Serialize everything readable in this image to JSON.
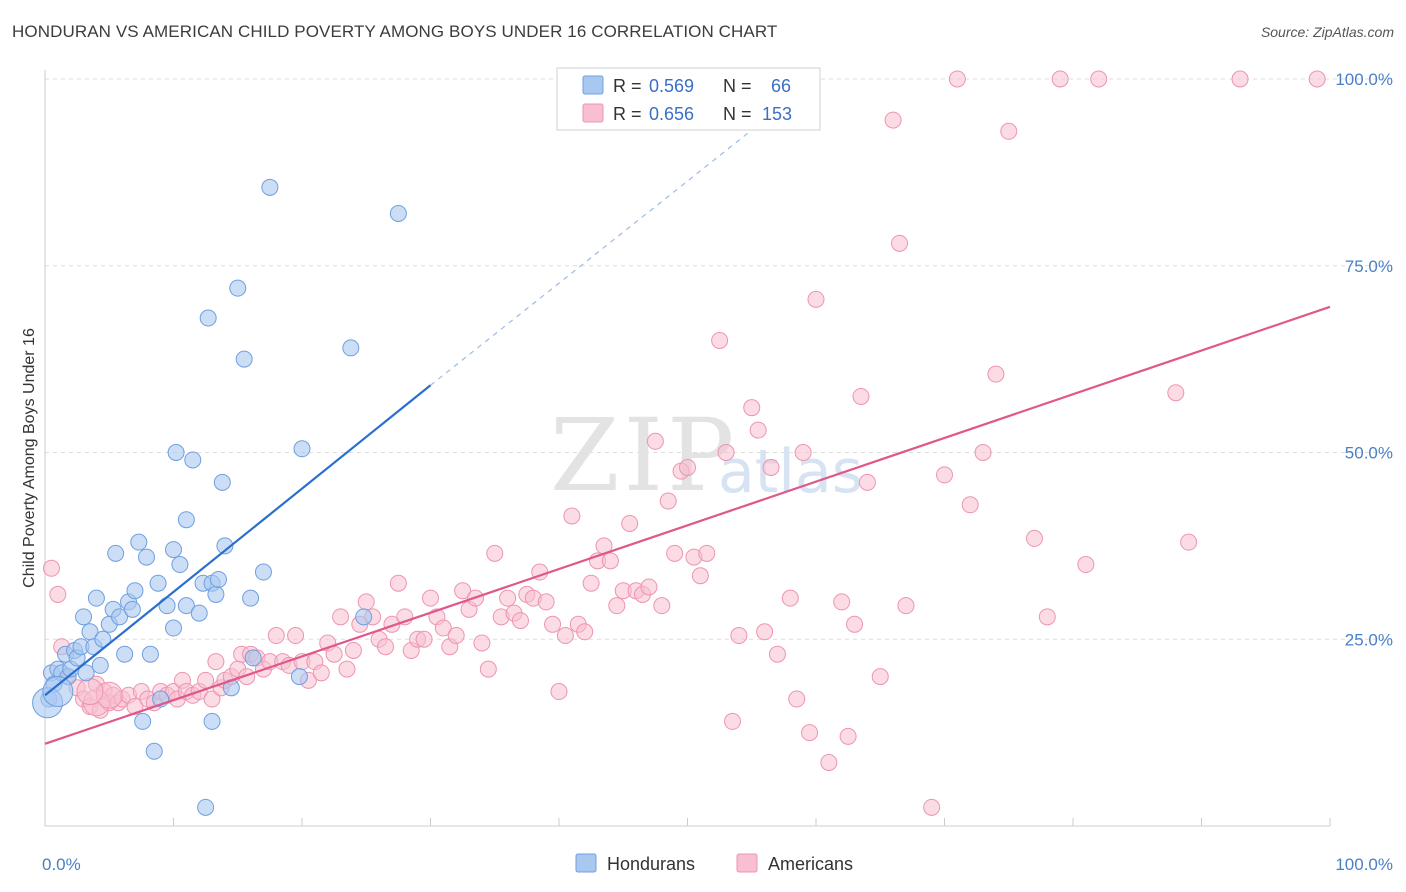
{
  "header": {
    "title": "HONDURAN VS AMERICAN CHILD POVERTY AMONG BOYS UNDER 16 CORRELATION CHART",
    "source": "Source: ZipAtlas.com"
  },
  "watermark": {
    "zip": "ZIP",
    "atlas": "atlas"
  },
  "legend": {
    "rows": [
      {
        "r_label": "R = ",
        "r_value": "0.569",
        "n_label": "N = ",
        "n_value": "66"
      },
      {
        "r_label": "R = ",
        "r_value": "0.656",
        "n_label": "N = ",
        "n_value": "153"
      }
    ]
  },
  "colors": {
    "hondurans_fill": "#a9c8f0",
    "hondurans_stroke": "#6f9fe0",
    "hondurans_line": "#2a6fd0",
    "americans_fill": "#f7bfd0",
    "americans_stroke": "#ee94b0",
    "americans_line": "#e0578a",
    "tick_label": "#4a7fc8",
    "grid": "#dddddd"
  },
  "chart_data": {
    "type": "scatter",
    "title": "HONDURAN VS AMERICAN CHILD POVERTY AMONG BOYS UNDER 16 CORRELATION CHART",
    "xlabel": "",
    "ylabel": "Child Poverty Among Boys Under 16",
    "xlim": [
      0,
      100
    ],
    "ylim": [
      0,
      100
    ],
    "x_tick_labels": [
      "0.0%",
      "100.0%"
    ],
    "y_ticks": [
      25,
      50,
      75,
      100
    ],
    "y_tick_labels": [
      "25.0%",
      "50.0%",
      "75.0%",
      "100.0%"
    ],
    "grid": true,
    "legend_position": "top-center",
    "series": [
      {
        "name": "Hondurans",
        "r": 0.569,
        "n": 66,
        "trend": {
          "x0": 0,
          "y0": 17.5,
          "x1": 30,
          "y1": 59,
          "dash_to_x": 60,
          "dash_to_y": 100
        },
        "points": [
          [
            0.3,
            17
          ],
          [
            0.5,
            20.5
          ],
          [
            0.7,
            19
          ],
          [
            1,
            21
          ],
          [
            1.3,
            20.5
          ],
          [
            1.6,
            23
          ],
          [
            1.8,
            20
          ],
          [
            2,
            21
          ],
          [
            2.3,
            23.5
          ],
          [
            2.5,
            22.5
          ],
          [
            2.8,
            24
          ],
          [
            3,
            28
          ],
          [
            3.2,
            20.5
          ],
          [
            3.5,
            26
          ],
          [
            3.8,
            24
          ],
          [
            4,
            30.5
          ],
          [
            4.3,
            21.5
          ],
          [
            4.5,
            25
          ],
          [
            5,
            27
          ],
          [
            5.3,
            29
          ],
          [
            5.5,
            36.5
          ],
          [
            5.8,
            28
          ],
          [
            6.2,
            23
          ],
          [
            6.5,
            30
          ],
          [
            6.8,
            29
          ],
          [
            7,
            31.5
          ],
          [
            7.3,
            38
          ],
          [
            7.6,
            14
          ],
          [
            7.9,
            36
          ],
          [
            8.2,
            23
          ],
          [
            8.5,
            10
          ],
          [
            8.8,
            32.5
          ],
          [
            9,
            17
          ],
          [
            9.5,
            29.5
          ],
          [
            10,
            26.5
          ],
          [
            10,
            37
          ],
          [
            10.2,
            50
          ],
          [
            10.5,
            35
          ],
          [
            11,
            29.5
          ],
          [
            11,
            41
          ],
          [
            11.5,
            49
          ],
          [
            12,
            28.5
          ],
          [
            12.3,
            32.5
          ],
          [
            12.5,
            2.5
          ],
          [
            12.7,
            68
          ],
          [
            13,
            14
          ],
          [
            13,
            32.5
          ],
          [
            13.3,
            31
          ],
          [
            13.5,
            33
          ],
          [
            13.8,
            46
          ],
          [
            14,
            37.5
          ],
          [
            14.5,
            18.5
          ],
          [
            15,
            72
          ],
          [
            15.5,
            62.5
          ],
          [
            16,
            30.5
          ],
          [
            16.2,
            22.5
          ],
          [
            17,
            34
          ],
          [
            17.5,
            85.5
          ],
          [
            19.8,
            20
          ],
          [
            20,
            50.5
          ],
          [
            23.8,
            64
          ],
          [
            24.8,
            28
          ],
          [
            27.5,
            82
          ]
        ],
        "big_points": [
          [
            0.2,
            16.5
          ],
          [
            1,
            18
          ]
        ]
      },
      {
        "name": "Americans",
        "r": 0.656,
        "n": 153,
        "trend": {
          "x0": 0,
          "y0": 11,
          "x1": 100,
          "y1": 69.5
        },
        "points": [
          [
            0.5,
            34.5
          ],
          [
            1,
            31
          ],
          [
            1.3,
            24
          ],
          [
            1.8,
            20
          ],
          [
            2.5,
            18.5
          ],
          [
            3,
            17
          ],
          [
            3.5,
            16
          ],
          [
            4,
            19
          ],
          [
            4.3,
            15.5
          ],
          [
            4.6,
            18
          ],
          [
            5,
            16.5
          ],
          [
            5.3,
            17.5
          ],
          [
            5.7,
            16.5
          ],
          [
            6,
            17
          ],
          [
            6.5,
            17.5
          ],
          [
            7,
            16
          ],
          [
            7.5,
            18
          ],
          [
            8,
            17
          ],
          [
            8.5,
            16.5
          ],
          [
            9,
            18
          ],
          [
            9.5,
            17.5
          ],
          [
            10,
            18
          ],
          [
            10.3,
            17
          ],
          [
            10.7,
            19.5
          ],
          [
            11,
            18
          ],
          [
            11.5,
            17.5
          ],
          [
            12,
            18
          ],
          [
            12.5,
            19.5
          ],
          [
            13,
            17
          ],
          [
            13.3,
            22
          ],
          [
            13.7,
            18.5
          ],
          [
            14,
            19.5
          ],
          [
            14.5,
            20
          ],
          [
            15,
            21
          ],
          [
            15.3,
            23
          ],
          [
            15.7,
            20
          ],
          [
            16,
            23
          ],
          [
            16.5,
            22.5
          ],
          [
            17,
            21
          ],
          [
            17.5,
            22
          ],
          [
            18,
            25.5
          ],
          [
            18.5,
            22
          ],
          [
            19,
            21.5
          ],
          [
            19.5,
            25.5
          ],
          [
            20,
            22
          ],
          [
            20.5,
            19.5
          ],
          [
            21,
            22
          ],
          [
            21.5,
            20.5
          ],
          [
            22,
            24.5
          ],
          [
            22.5,
            23
          ],
          [
            23,
            28
          ],
          [
            23.5,
            21
          ],
          [
            24,
            23.5
          ],
          [
            24.5,
            27
          ],
          [
            25,
            30
          ],
          [
            25.5,
            28
          ],
          [
            26,
            25
          ],
          [
            26.5,
            24
          ],
          [
            27,
            27
          ],
          [
            27.5,
            32.5
          ],
          [
            28,
            28
          ],
          [
            28.5,
            23.5
          ],
          [
            29,
            25
          ],
          [
            29.5,
            25
          ],
          [
            30,
            30.5
          ],
          [
            30.5,
            28
          ],
          [
            31,
            26.5
          ],
          [
            31.5,
            24
          ],
          [
            32,
            25.5
          ],
          [
            32.5,
            31.5
          ],
          [
            33,
            29
          ],
          [
            33.5,
            30.5
          ],
          [
            34,
            24.5
          ],
          [
            34.5,
            21
          ],
          [
            35,
            36.5
          ],
          [
            35.5,
            28
          ],
          [
            36,
            30.5
          ],
          [
            36.5,
            28.5
          ],
          [
            37,
            27.5
          ],
          [
            37.5,
            31
          ],
          [
            38,
            30.5
          ],
          [
            38.5,
            34
          ],
          [
            39,
            30
          ],
          [
            39.5,
            27
          ],
          [
            40,
            18
          ],
          [
            40.5,
            25.5
          ],
          [
            41,
            41.5
          ],
          [
            41.5,
            27
          ],
          [
            42,
            26
          ],
          [
            42.5,
            32.5
          ],
          [
            43,
            35.5
          ],
          [
            43.5,
            37.5
          ],
          [
            44,
            35.5
          ],
          [
            44.5,
            29.5
          ],
          [
            45,
            31.5
          ],
          [
            45.5,
            40.5
          ],
          [
            46,
            31.5
          ],
          [
            46.5,
            31
          ],
          [
            47,
            32
          ],
          [
            47.5,
            51.5
          ],
          [
            48,
            29.5
          ],
          [
            48.5,
            43.5
          ],
          [
            49,
            36.5
          ],
          [
            49.5,
            47.5
          ],
          [
            50,
            48
          ],
          [
            50.5,
            36
          ],
          [
            51,
            33.5
          ],
          [
            51.5,
            36.5
          ],
          [
            52.5,
            65
          ],
          [
            53,
            50
          ],
          [
            53.5,
            14
          ],
          [
            54,
            25.5
          ],
          [
            55,
            56
          ],
          [
            55.5,
            53
          ],
          [
            56,
            26
          ],
          [
            56.5,
            48
          ],
          [
            57,
            23
          ],
          [
            58,
            30.5
          ],
          [
            58.5,
            17
          ],
          [
            59,
            50
          ],
          [
            59.5,
            12.5
          ],
          [
            60,
            70.5
          ],
          [
            61,
            8.5
          ],
          [
            62,
            30
          ],
          [
            62.5,
            12
          ],
          [
            63,
            27
          ],
          [
            63.5,
            57.5
          ],
          [
            64,
            46
          ],
          [
            65,
            20
          ],
          [
            66,
            94.5
          ],
          [
            66.5,
            78
          ],
          [
            67,
            29.5
          ],
          [
            69,
            2.5
          ],
          [
            70,
            47
          ],
          [
            71,
            100
          ],
          [
            72,
            43
          ],
          [
            73,
            50
          ],
          [
            74,
            60.5
          ],
          [
            75,
            93
          ],
          [
            77,
            38.5
          ],
          [
            78,
            28
          ],
          [
            79,
            100
          ],
          [
            81,
            35
          ],
          [
            82,
            100
          ],
          [
            89,
            38
          ],
          [
            88,
            58
          ],
          [
            93,
            100
          ],
          [
            99,
            100
          ],
          [
            59.5,
            100
          ]
        ],
        "big_points": [
          [
            4,
            16.5
          ],
          [
            5,
            17.5
          ],
          [
            3.5,
            18
          ]
        ]
      }
    ]
  },
  "bottom_legend": {
    "hondurans": "Hondurans",
    "americans": "Americans"
  }
}
